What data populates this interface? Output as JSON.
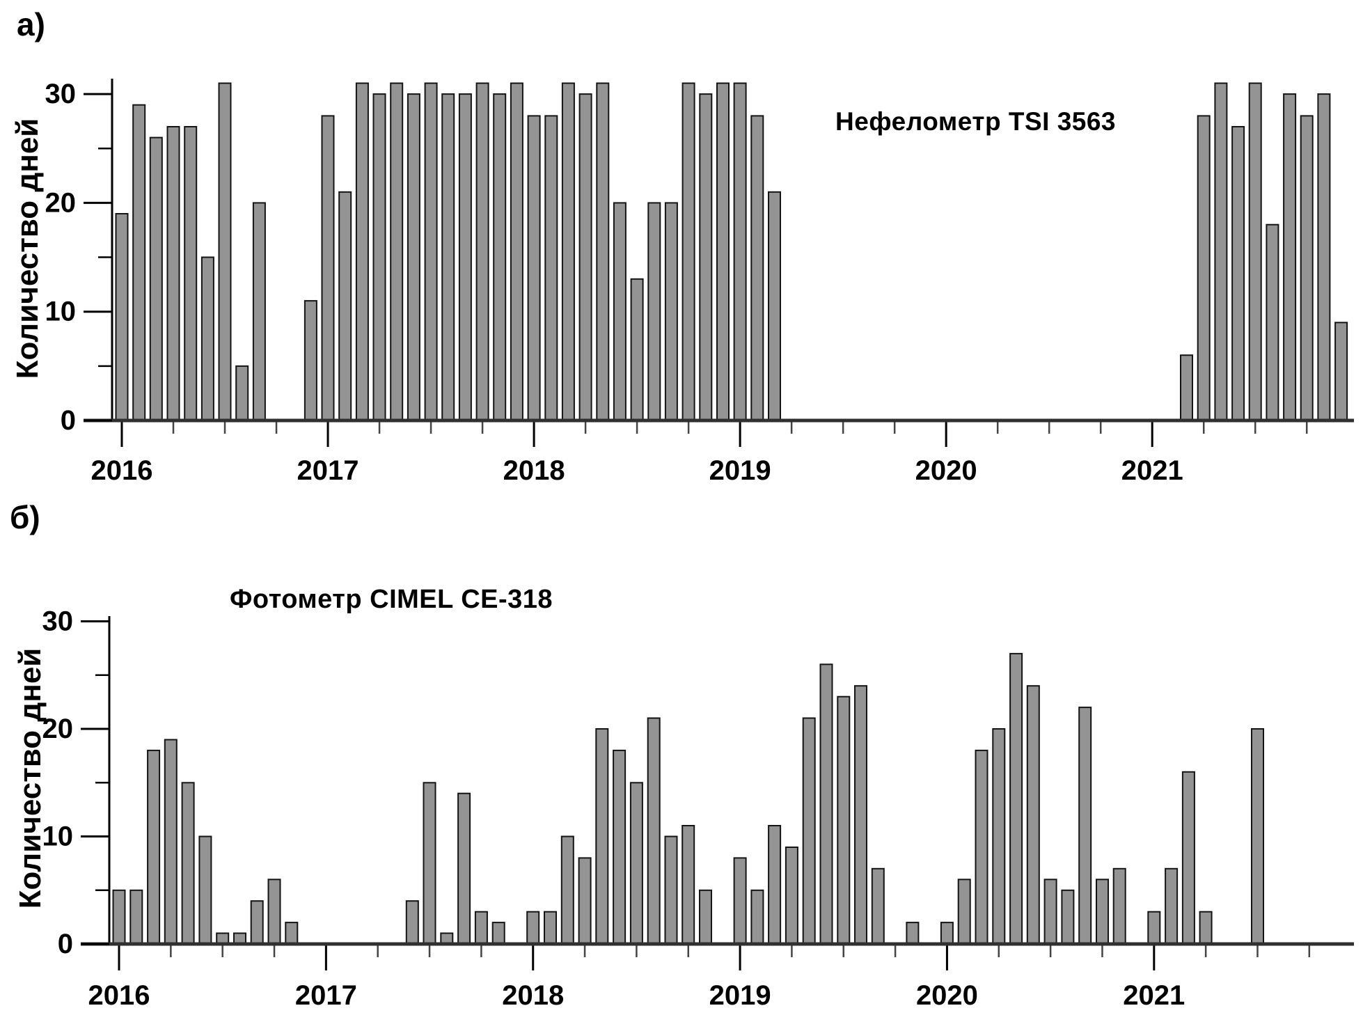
{
  "figure": {
    "background": "#ffffff",
    "text_color": "#000000"
  },
  "colors": {
    "bar_fill": "#949494",
    "bar_stroke": "#141414",
    "axis": "#303030",
    "tick": "#000000",
    "minor_x_tick": "#444444"
  },
  "chart_data": [
    {
      "type": "bar",
      "panel_label": "а)",
      "title": "Нефелометр TSI 3563",
      "ylabel": "Количество дней",
      "ylim": [
        0,
        31
      ],
      "yticks": [
        0,
        10,
        20,
        30
      ],
      "yticks_minor": [
        5,
        15,
        25
      ],
      "x_tick_labels": [
        "2016",
        "2017",
        "2018",
        "2019",
        "2020",
        "2021"
      ],
      "grid": "off",
      "legend": "none",
      "years": [
        {
          "year": "2016",
          "values": [
            19,
            29,
            26,
            27,
            27,
            15,
            31,
            5,
            20,
            0,
            0,
            11
          ]
        },
        {
          "year": "2017",
          "values": [
            28,
            21,
            31,
            30,
            31,
            30,
            31,
            30,
            30,
            31,
            30,
            31
          ]
        },
        {
          "year": "2018",
          "values": [
            28,
            28,
            31,
            30,
            31,
            20,
            13,
            20,
            20,
            31,
            30,
            31
          ]
        },
        {
          "year": "2019",
          "values": [
            31,
            28,
            21,
            0,
            0,
            0,
            0,
            0,
            0,
            0,
            0,
            0
          ]
        },
        {
          "year": "2020",
          "values": [
            0,
            0,
            0,
            0,
            0,
            0,
            0,
            0,
            0,
            0,
            0,
            0
          ]
        },
        {
          "year": "2021",
          "values": [
            0,
            0,
            6,
            28,
            31,
            27,
            31,
            18,
            30,
            28,
            30,
            9
          ]
        }
      ]
    },
    {
      "type": "bar",
      "panel_label": "б)",
      "title": "Фотометр CIMEL CE-318",
      "ylabel": "Количество дней",
      "ylim": [
        0,
        31
      ],
      "yticks": [
        0,
        10,
        20,
        30
      ],
      "yticks_minor": [
        5,
        15,
        25
      ],
      "x_tick_labels": [
        "2016",
        "2017",
        "2018",
        "2019",
        "2020",
        "2021"
      ],
      "grid": "off",
      "legend": "none",
      "years": [
        {
          "year": "2016",
          "values": [
            5,
            5,
            18,
            19,
            15,
            10,
            1,
            1,
            4,
            6,
            2,
            0
          ]
        },
        {
          "year": "2017",
          "values": [
            0,
            0,
            0,
            0,
            0,
            4,
            15,
            1,
            14,
            3,
            2,
            0
          ]
        },
        {
          "year": "2018",
          "values": [
            3,
            3,
            10,
            8,
            20,
            18,
            15,
            21,
            10,
            11,
            5,
            0
          ]
        },
        {
          "year": "2019",
          "values": [
            8,
            5,
            11,
            9,
            21,
            26,
            23,
            24,
            7,
            0,
            2,
            0
          ]
        },
        {
          "year": "2020",
          "values": [
            2,
            6,
            18,
            20,
            27,
            24,
            6,
            5,
            22,
            6,
            7,
            0
          ]
        },
        {
          "year": "2021",
          "values": [
            3,
            7,
            16,
            3,
            0,
            0,
            20,
            0,
            0,
            0,
            0,
            0
          ]
        }
      ]
    }
  ]
}
